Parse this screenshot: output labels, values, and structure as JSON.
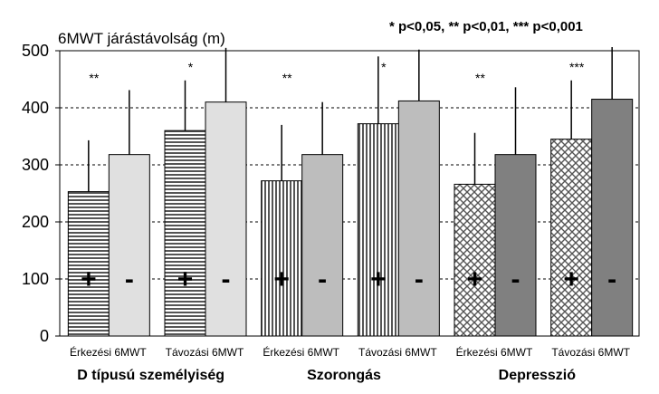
{
  "chart_data": {
    "type": "bar",
    "y_axis_title": "6MWT járástávolság (m)",
    "legend_note": "* p<0,05, ** p<0,01,  *** p<0,001",
    "ylim": [
      0,
      500
    ],
    "yticks": [
      0,
      100,
      200,
      300,
      400,
      500
    ],
    "grid": "dashed horizontal",
    "groups": [
      {
        "name": "D típusú személyiség",
        "categories": [
          "Érkezési 6MWT",
          "Távozási 6MWT"
        ],
        "series": [
          {
            "name": "+",
            "values": [
              253,
              360
            ],
            "error": [
              90,
              88
            ],
            "significance": [
              "**",
              "*"
            ]
          },
          {
            "name": "-",
            "values": [
              318,
              410
            ],
            "error": [
              113,
              95
            ]
          }
        ]
      },
      {
        "name": "Szorongás",
        "categories": [
          "Érkezési 6MWT",
          "Távozási 6MWT"
        ],
        "series": [
          {
            "name": "+",
            "values": [
              272,
              372
            ],
            "error": [
              98,
              118
            ],
            "significance": [
              "**",
              "*"
            ]
          },
          {
            "name": "-",
            "values": [
              318,
              412
            ],
            "error": [
              92,
              90
            ]
          }
        ]
      },
      {
        "name": "Depresszió",
        "categories": [
          "Érkezési 6MWT",
          "Távozási 6MWT"
        ],
        "series": [
          {
            "name": "+",
            "values": [
              266,
              345
            ],
            "error": [
              90,
              103
            ],
            "significance": [
              "**",
              "***"
            ]
          },
          {
            "name": "-",
            "values": [
              318,
              415
            ],
            "error": [
              118,
              105
            ]
          }
        ]
      }
    ],
    "colors": {
      "minus_group1": "#e0e0e0",
      "minus_group2": "#bdbdbd",
      "minus_group3": "#808080",
      "plus_pattern_group1": "horizontal-lines",
      "plus_pattern_group2": "vertical-lines",
      "plus_pattern_group3": "crosshatch"
    }
  }
}
